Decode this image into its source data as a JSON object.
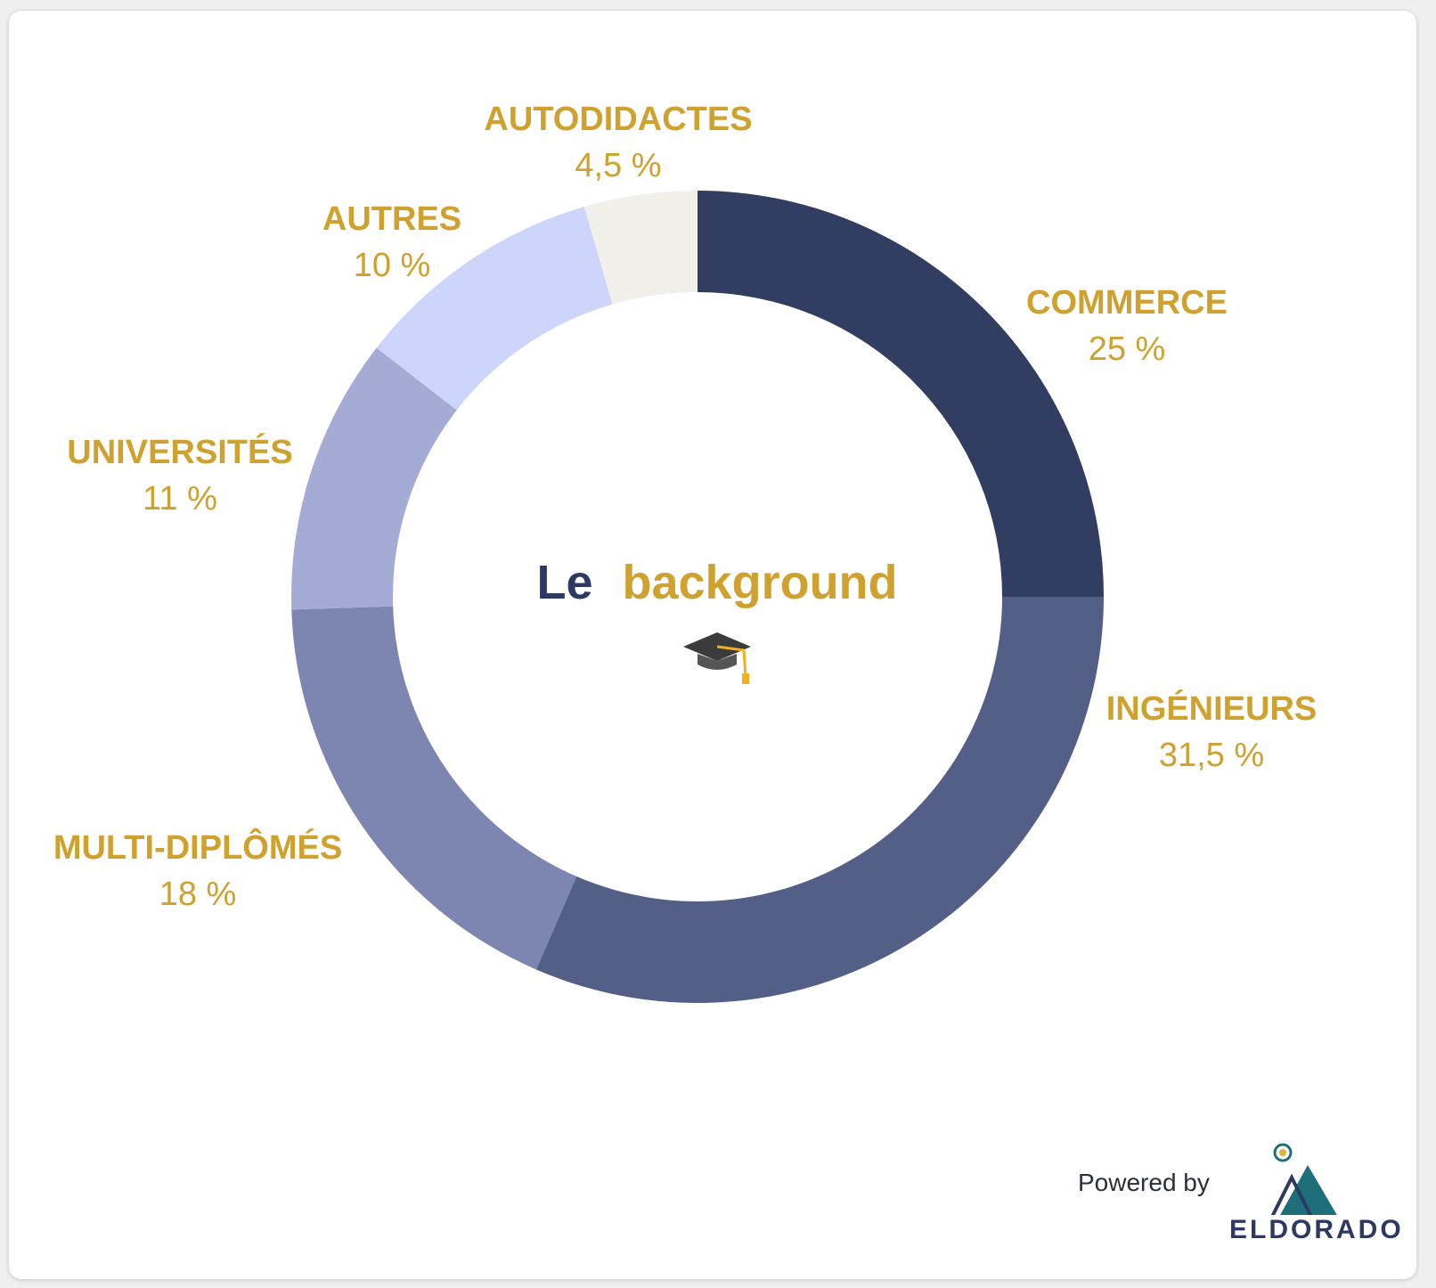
{
  "colors": {
    "label": "#cfa12e",
    "title_dark": "#2c3a63",
    "title_accent": "#cfa12e",
    "logo_dark": "#2c3a63",
    "logo_teal": "#1e6f7a",
    "logo_gold": "#e4b333"
  },
  "chart_data": {
    "type": "pie",
    "donut": true,
    "title": "",
    "center_label": {
      "part1": "Le",
      "part2": "background",
      "icon": "graduation-cap-icon"
    },
    "slices": [
      {
        "name": "COMMERCE",
        "value": 25,
        "value_label": "25 %",
        "color": "#323d62"
      },
      {
        "name": "INGÉNIEURS",
        "value": 31.5,
        "value_label": "31,5 %",
        "color": "#535f87"
      },
      {
        "name": "MULTI-DIPLÔMÉS",
        "value": 18,
        "value_label": "18 %",
        "color": "#7d86b0"
      },
      {
        "name": "UNIVERSITÉS",
        "value": 11,
        "value_label": "11 %",
        "color": "#a4acd6"
      },
      {
        "name": "AUTRES",
        "value": 10,
        "value_label": "10 %",
        "color": "#cdd5fa"
      },
      {
        "name": "AUTODIDACTES",
        "value": 4.5,
        "value_label": "4,5 %",
        "color": "#f1f0ea"
      }
    ],
    "start_position": "top",
    "direction": "clockwise"
  },
  "footer": {
    "powered_by": "Powered by",
    "brand": "ELDORADO"
  }
}
